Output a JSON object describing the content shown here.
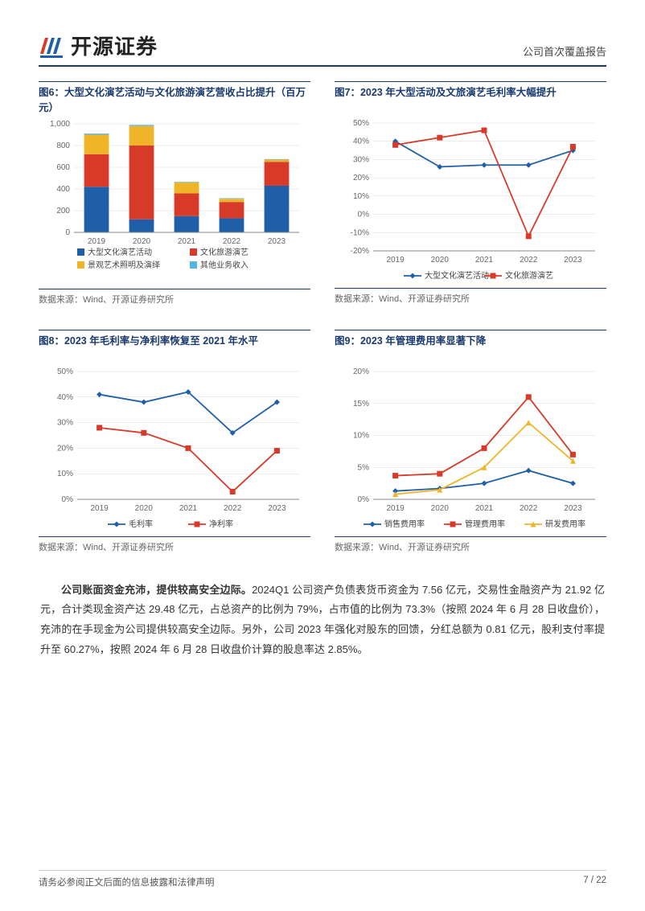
{
  "header": {
    "logo_text": "开源证券",
    "subtitle": "公司首次覆盖报告"
  },
  "charts": {
    "fig6": {
      "title": "图6：大型文化演艺活动与文化旅游演艺营收占比提升（百万元）",
      "type": "stacked-bar",
      "categories": [
        "2019",
        "2020",
        "2021",
        "2022",
        "2023"
      ],
      "series": [
        {
          "name": "大型文化演艺活动",
          "color": "#1f5fa8",
          "values": [
            420,
            120,
            150,
            130,
            430
          ]
        },
        {
          "name": "文化旅游演艺",
          "color": "#d83a2a",
          "values": [
            300,
            680,
            210,
            150,
            220
          ]
        },
        {
          "name": "景观艺术照明及演绎",
          "color": "#f0b428",
          "values": [
            180,
            180,
            100,
            30,
            20
          ]
        },
        {
          "name": "其他业务收入",
          "color": "#56b4e2",
          "values": [
            10,
            10,
            5,
            5,
            5
          ]
        }
      ],
      "ylim": [
        0,
        1000
      ],
      "ytick_step": 200,
      "bar_width": 0.55,
      "background_color": "#ffffff",
      "grid_color": "#d8d8d8",
      "source": "数据来源：Wind、开源证券研究所"
    },
    "fig7": {
      "title": "图7：2023 年大型活动及文旅演艺毛利率大幅提升",
      "type": "line",
      "categories": [
        "2019",
        "2020",
        "2021",
        "2022",
        "2023"
      ],
      "series": [
        {
          "name": "大型文化演艺活动",
          "color": "#1f5fa8",
          "values": [
            40,
            26,
            27,
            27,
            35
          ],
          "marker": "diamond"
        },
        {
          "name": "文化旅游演艺",
          "color": "#d83a2a",
          "values": [
            38,
            42,
            46,
            -12,
            37
          ],
          "marker": "square"
        }
      ],
      "ylim": [
        -20,
        50
      ],
      "ytick_step": 10,
      "y_suffix": "%",
      "background_color": "#ffffff",
      "grid_color": "#d8d8d8",
      "source": "数据来源：Wind、开源证券研究所"
    },
    "fig8": {
      "title": "图8：2023 年毛利率与净利率恢复至 2021 年水平",
      "type": "line",
      "categories": [
        "2019",
        "2020",
        "2021",
        "2022",
        "2023"
      ],
      "series": [
        {
          "name": "毛利率",
          "color": "#1f5fa8",
          "values": [
            41,
            38,
            42,
            26,
            38
          ],
          "marker": "diamond"
        },
        {
          "name": "净利率",
          "color": "#d83a2a",
          "values": [
            28,
            26,
            20,
            3,
            19
          ],
          "marker": "square"
        }
      ],
      "ylim": [
        0,
        50
      ],
      "ytick_step": 10,
      "y_suffix": "%",
      "background_color": "#ffffff",
      "grid_color": "#d8d8d8",
      "source": "数据来源：Wind、开源证券研究所"
    },
    "fig9": {
      "title": "图9：2023 年管理费用率显著下降",
      "type": "line",
      "categories": [
        "2019",
        "2020",
        "2021",
        "2022",
        "2023"
      ],
      "series": [
        {
          "name": "销售费用率",
          "color": "#1f5fa8",
          "values": [
            1.3,
            1.7,
            2.5,
            4.5,
            2.5
          ],
          "marker": "diamond"
        },
        {
          "name": "管理费用率",
          "color": "#d83a2a",
          "values": [
            3.7,
            4,
            8,
            16,
            7
          ],
          "marker": "square"
        },
        {
          "name": "研发费用率",
          "color": "#f0b428",
          "values": [
            0.8,
            1.5,
            5,
            12,
            6
          ],
          "marker": "triangle"
        }
      ],
      "ylim": [
        0,
        20
      ],
      "ytick_step": 5,
      "y_suffix": "%",
      "background_color": "#ffffff",
      "grid_color": "#d8d8d8",
      "source": "数据来源：Wind、开源证券研究所"
    }
  },
  "body_text": {
    "bold_lead": "公司账面资金充沛，提供较高安全边际。",
    "content": "2024Q1 公司资产负债表货币资金为 7.56 亿元，交易性金融资产为 21.92 亿元，合计类现金资产达 29.48 亿元，占总资产的比例为 79%，占市值的比例为 73.3%（按照 2024 年 6 月 28 日收盘价），充沛的在手现金为公司提供较高安全边际。另外，公司 2023 年强化对股东的回馈，分红总额为 0.81 亿元，股利支付率提升至 60.27%，按照 2024 年 6 月 28 日收盘价计算的股息率达 2.85%。"
  },
  "footer": {
    "disclaimer": "请务必参阅正文后面的信息披露和法律声明",
    "page_num": "7 / 22"
  },
  "colors": {
    "brand_blue": "#1a3a6e",
    "text": "#333333"
  }
}
